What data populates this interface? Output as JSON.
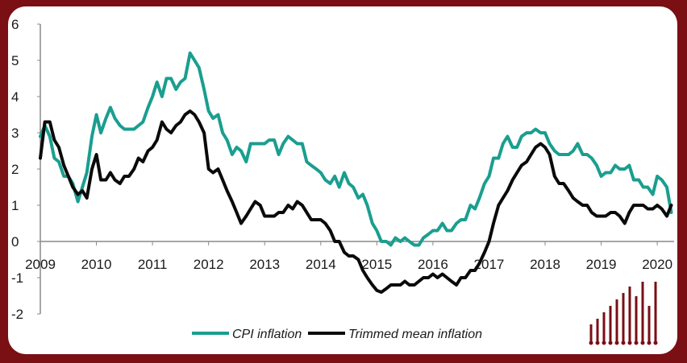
{
  "chart_data": {
    "type": "line",
    "xlim": [
      2009,
      2020.3
    ],
    "ylim": [
      -2,
      6
    ],
    "y_ticks": [
      "-2",
      "-1",
      "0",
      "1",
      "2",
      "3",
      "4",
      "5",
      "6"
    ],
    "x_ticks": [
      "2009",
      "2010",
      "2011",
      "2012",
      "2013",
      "2014",
      "2015",
      "2016",
      "2017",
      "2018",
      "2019",
      "2020"
    ],
    "grid": false,
    "legend_position": "bottom",
    "colors": {
      "cpi": "#1a9e8f",
      "trimmed": "#0a0a0a",
      "brand": "#7a0f14"
    },
    "series": [
      {
        "name": "CPI inflation",
        "points": [
          [
            2009.0,
            2.9
          ],
          [
            2009.08,
            3.2
          ],
          [
            2009.17,
            2.9
          ],
          [
            2009.25,
            2.3
          ],
          [
            2009.33,
            2.2
          ],
          [
            2009.42,
            1.8
          ],
          [
            2009.5,
            1.8
          ],
          [
            2009.58,
            1.6
          ],
          [
            2009.67,
            1.1
          ],
          [
            2009.75,
            1.5
          ],
          [
            2009.83,
            1.9
          ],
          [
            2009.92,
            2.9
          ],
          [
            2010.0,
            3.5
          ],
          [
            2010.08,
            3.0
          ],
          [
            2010.17,
            3.4
          ],
          [
            2010.25,
            3.7
          ],
          [
            2010.33,
            3.4
          ],
          [
            2010.42,
            3.2
          ],
          [
            2010.5,
            3.1
          ],
          [
            2010.58,
            3.1
          ],
          [
            2010.67,
            3.1
          ],
          [
            2010.75,
            3.2
          ],
          [
            2010.83,
            3.3
          ],
          [
            2010.92,
            3.7
          ],
          [
            2011.0,
            4.0
          ],
          [
            2011.08,
            4.4
          ],
          [
            2011.17,
            4.0
          ],
          [
            2011.25,
            4.5
          ],
          [
            2011.33,
            4.5
          ],
          [
            2011.42,
            4.2
          ],
          [
            2011.5,
            4.4
          ],
          [
            2011.58,
            4.5
          ],
          [
            2011.67,
            5.2
          ],
          [
            2011.75,
            5.0
          ],
          [
            2011.83,
            4.8
          ],
          [
            2011.92,
            4.2
          ],
          [
            2012.0,
            3.6
          ],
          [
            2012.08,
            3.4
          ],
          [
            2012.17,
            3.5
          ],
          [
            2012.25,
            3.0
          ],
          [
            2012.33,
            2.8
          ],
          [
            2012.42,
            2.4
          ],
          [
            2012.5,
            2.6
          ],
          [
            2012.58,
            2.5
          ],
          [
            2012.67,
            2.2
          ],
          [
            2012.75,
            2.7
          ],
          [
            2012.83,
            2.7
          ],
          [
            2012.92,
            2.7
          ],
          [
            2013.0,
            2.7
          ],
          [
            2013.08,
            2.8
          ],
          [
            2013.17,
            2.8
          ],
          [
            2013.25,
            2.4
          ],
          [
            2013.33,
            2.7
          ],
          [
            2013.42,
            2.9
          ],
          [
            2013.5,
            2.8
          ],
          [
            2013.58,
            2.7
          ],
          [
            2013.67,
            2.7
          ],
          [
            2013.75,
            2.2
          ],
          [
            2013.83,
            2.1
          ],
          [
            2013.92,
            2.0
          ],
          [
            2014.0,
            1.9
          ],
          [
            2014.08,
            1.7
          ],
          [
            2014.17,
            1.6
          ],
          [
            2014.25,
            1.8
          ],
          [
            2014.33,
            1.5
          ],
          [
            2014.42,
            1.9
          ],
          [
            2014.5,
            1.6
          ],
          [
            2014.58,
            1.5
          ],
          [
            2014.67,
            1.2
          ],
          [
            2014.75,
            1.3
          ],
          [
            2014.83,
            1.0
          ],
          [
            2014.92,
            0.5
          ],
          [
            2015.0,
            0.3
          ],
          [
            2015.08,
            0.0
          ],
          [
            2015.17,
            0.0
          ],
          [
            2015.25,
            -0.1
          ],
          [
            2015.33,
            0.1
          ],
          [
            2015.42,
            0.0
          ],
          [
            2015.5,
            0.1
          ],
          [
            2015.58,
            0.0
          ],
          [
            2015.67,
            -0.1
          ],
          [
            2015.75,
            -0.1
          ],
          [
            2015.83,
            0.1
          ],
          [
            2015.92,
            0.2
          ],
          [
            2016.0,
            0.3
          ],
          [
            2016.08,
            0.3
          ],
          [
            2016.17,
            0.5
          ],
          [
            2016.25,
            0.3
          ],
          [
            2016.33,
            0.3
          ],
          [
            2016.42,
            0.5
          ],
          [
            2016.5,
            0.6
          ],
          [
            2016.58,
            0.6
          ],
          [
            2016.67,
            1.0
          ],
          [
            2016.75,
            0.9
          ],
          [
            2016.83,
            1.2
          ],
          [
            2016.92,
            1.6
          ],
          [
            2017.0,
            1.8
          ],
          [
            2017.08,
            2.3
          ],
          [
            2017.17,
            2.3
          ],
          [
            2017.25,
            2.7
          ],
          [
            2017.33,
            2.9
          ],
          [
            2017.42,
            2.6
          ],
          [
            2017.5,
            2.6
          ],
          [
            2017.58,
            2.9
          ],
          [
            2017.67,
            3.0
          ],
          [
            2017.75,
            3.0
          ],
          [
            2017.83,
            3.1
          ],
          [
            2017.92,
            3.0
          ],
          [
            2018.0,
            3.0
          ],
          [
            2018.08,
            2.7
          ],
          [
            2018.17,
            2.5
          ],
          [
            2018.25,
            2.4
          ],
          [
            2018.33,
            2.4
          ],
          [
            2018.42,
            2.4
          ],
          [
            2018.5,
            2.5
          ],
          [
            2018.58,
            2.7
          ],
          [
            2018.67,
            2.4
          ],
          [
            2018.75,
            2.4
          ],
          [
            2018.83,
            2.3
          ],
          [
            2018.92,
            2.1
          ],
          [
            2019.0,
            1.8
          ],
          [
            2019.08,
            1.9
          ],
          [
            2019.17,
            1.9
          ],
          [
            2019.25,
            2.1
          ],
          [
            2019.33,
            2.0
          ],
          [
            2019.42,
            2.0
          ],
          [
            2019.5,
            2.1
          ],
          [
            2019.58,
            1.7
          ],
          [
            2019.67,
            1.7
          ],
          [
            2019.75,
            1.5
          ],
          [
            2019.83,
            1.5
          ],
          [
            2019.92,
            1.3
          ],
          [
            2020.0,
            1.8
          ],
          [
            2020.08,
            1.7
          ],
          [
            2020.17,
            1.5
          ],
          [
            2020.25,
            0.8
          ]
        ]
      },
      {
        "name": "Trimmed mean inflation",
        "points": [
          [
            2009.0,
            2.3
          ],
          [
            2009.08,
            3.3
          ],
          [
            2009.17,
            3.3
          ],
          [
            2009.25,
            2.8
          ],
          [
            2009.33,
            2.6
          ],
          [
            2009.42,
            2.1
          ],
          [
            2009.5,
            1.8
          ],
          [
            2009.58,
            1.5
          ],
          [
            2009.67,
            1.3
          ],
          [
            2009.75,
            1.4
          ],
          [
            2009.83,
            1.2
          ],
          [
            2009.92,
            2.0
          ],
          [
            2010.0,
            2.4
          ],
          [
            2010.08,
            1.7
          ],
          [
            2010.17,
            1.7
          ],
          [
            2010.25,
            1.9
          ],
          [
            2010.33,
            1.7
          ],
          [
            2010.42,
            1.6
          ],
          [
            2010.5,
            1.8
          ],
          [
            2010.58,
            1.8
          ],
          [
            2010.67,
            2.0
          ],
          [
            2010.75,
            2.3
          ],
          [
            2010.83,
            2.2
          ],
          [
            2010.92,
            2.5
          ],
          [
            2011.0,
            2.6
          ],
          [
            2011.08,
            2.8
          ],
          [
            2011.17,
            3.3
          ],
          [
            2011.25,
            3.1
          ],
          [
            2011.33,
            3.0
          ],
          [
            2011.42,
            3.2
          ],
          [
            2011.5,
            3.3
          ],
          [
            2011.58,
            3.5
          ],
          [
            2011.67,
            3.6
          ],
          [
            2011.75,
            3.5
          ],
          [
            2011.83,
            3.3
          ],
          [
            2011.92,
            3.0
          ],
          [
            2012.0,
            2.0
          ],
          [
            2012.08,
            1.9
          ],
          [
            2012.17,
            2.0
          ],
          [
            2012.25,
            1.7
          ],
          [
            2012.33,
            1.4
          ],
          [
            2012.42,
            1.1
          ],
          [
            2012.5,
            0.8
          ],
          [
            2012.58,
            0.5
          ],
          [
            2012.67,
            0.7
          ],
          [
            2012.75,
            0.9
          ],
          [
            2012.83,
            1.1
          ],
          [
            2012.92,
            1.0
          ],
          [
            2013.0,
            0.7
          ],
          [
            2013.08,
            0.7
          ],
          [
            2013.17,
            0.7
          ],
          [
            2013.25,
            0.8
          ],
          [
            2013.33,
            0.8
          ],
          [
            2013.42,
            1.0
          ],
          [
            2013.5,
            0.9
          ],
          [
            2013.58,
            1.1
          ],
          [
            2013.67,
            1.0
          ],
          [
            2013.75,
            0.8
          ],
          [
            2013.83,
            0.6
          ],
          [
            2013.92,
            0.6
          ],
          [
            2014.0,
            0.6
          ],
          [
            2014.08,
            0.5
          ],
          [
            2014.17,
            0.3
          ],
          [
            2014.25,
            0.0
          ],
          [
            2014.33,
            0.0
          ],
          [
            2014.42,
            -0.3
          ],
          [
            2014.5,
            -0.4
          ],
          [
            2014.58,
            -0.4
          ],
          [
            2014.67,
            -0.5
          ],
          [
            2014.75,
            -0.8
          ],
          [
            2014.83,
            -1.0
          ],
          [
            2014.92,
            -1.2
          ],
          [
            2015.0,
            -1.35
          ],
          [
            2015.08,
            -1.4
          ],
          [
            2015.17,
            -1.3
          ],
          [
            2015.25,
            -1.2
          ],
          [
            2015.33,
            -1.2
          ],
          [
            2015.42,
            -1.2
          ],
          [
            2015.5,
            -1.1
          ],
          [
            2015.58,
            -1.2
          ],
          [
            2015.67,
            -1.2
          ],
          [
            2015.75,
            -1.1
          ],
          [
            2015.83,
            -1.0
          ],
          [
            2015.92,
            -1.0
          ],
          [
            2016.0,
            -0.9
          ],
          [
            2016.08,
            -1.0
          ],
          [
            2016.17,
            -0.9
          ],
          [
            2016.25,
            -1.0
          ],
          [
            2016.33,
            -1.1
          ],
          [
            2016.42,
            -1.2
          ],
          [
            2016.5,
            -1.0
          ],
          [
            2016.58,
            -1.0
          ],
          [
            2016.67,
            -0.8
          ],
          [
            2016.75,
            -0.8
          ],
          [
            2016.83,
            -0.6
          ],
          [
            2016.92,
            -0.3
          ],
          [
            2017.0,
            0.0
          ],
          [
            2017.08,
            0.5
          ],
          [
            2017.17,
            1.0
          ],
          [
            2017.25,
            1.2
          ],
          [
            2017.33,
            1.4
          ],
          [
            2017.42,
            1.7
          ],
          [
            2017.5,
            1.9
          ],
          [
            2017.58,
            2.1
          ],
          [
            2017.67,
            2.2
          ],
          [
            2017.75,
            2.4
          ],
          [
            2017.83,
            2.6
          ],
          [
            2017.92,
            2.7
          ],
          [
            2018.0,
            2.6
          ],
          [
            2018.08,
            2.4
          ],
          [
            2018.17,
            1.8
          ],
          [
            2018.25,
            1.6
          ],
          [
            2018.33,
            1.6
          ],
          [
            2018.42,
            1.4
          ],
          [
            2018.5,
            1.2
          ],
          [
            2018.58,
            1.1
          ],
          [
            2018.67,
            1.0
          ],
          [
            2018.75,
            1.0
          ],
          [
            2018.83,
            0.8
          ],
          [
            2018.92,
            0.7
          ],
          [
            2019.0,
            0.7
          ],
          [
            2019.08,
            0.7
          ],
          [
            2019.17,
            0.8
          ],
          [
            2019.25,
            0.8
          ],
          [
            2019.33,
            0.7
          ],
          [
            2019.42,
            0.5
          ],
          [
            2019.5,
            0.8
          ],
          [
            2019.58,
            1.0
          ],
          [
            2019.67,
            1.0
          ],
          [
            2019.75,
            1.0
          ],
          [
            2019.83,
            0.9
          ],
          [
            2019.92,
            0.9
          ],
          [
            2020.0,
            1.0
          ],
          [
            2020.08,
            0.9
          ],
          [
            2020.17,
            0.7
          ],
          [
            2020.25,
            1.0
          ]
        ]
      }
    ]
  },
  "logo": {
    "name": "logo-bars-icon"
  }
}
